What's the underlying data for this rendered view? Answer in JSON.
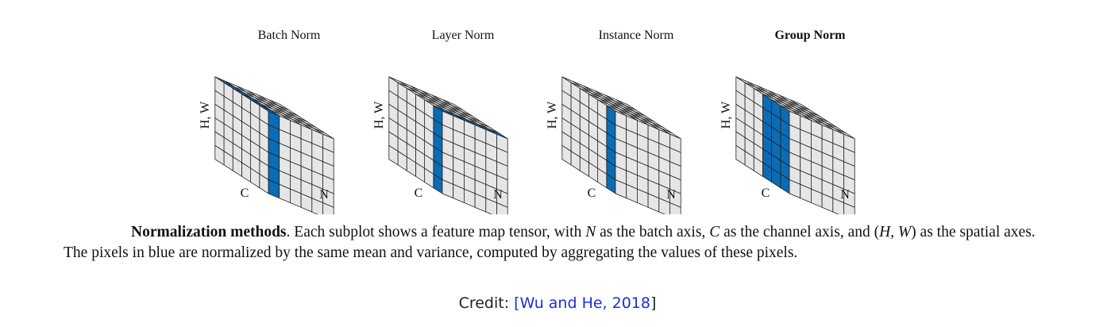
{
  "panels": [
    {
      "title": "Batch Norm",
      "bold": false,
      "mode": "batch"
    },
    {
      "title": "Layer Norm",
      "bold": false,
      "mode": "layer"
    },
    {
      "title": "Instance Norm",
      "bold": false,
      "mode": "instance"
    },
    {
      "title": "Group Norm",
      "bold": true,
      "mode": "group"
    }
  ],
  "axis_labels": {
    "hw": "H, W",
    "c": "C",
    "n": "N"
  },
  "colors": {
    "highlight": "#0a6cb5",
    "cell": "#e6e6e6",
    "stroke": "#222222"
  },
  "caption": {
    "lead": "Normalization methods",
    "part1": ". Each subplot shows a feature map tensor, with ",
    "n": "N",
    "part2": " as the batch axis, ",
    "c": "C",
    "part3": " as the channel axis, and (",
    "hw": "H, W",
    "part4": ") as the spatial axes. The pixels in blue are normalized by the same mean and variance, computed by aggregating the values of these pixels."
  },
  "credit": {
    "prefix": "Credit: ",
    "open": "[",
    "link": "Wu and He, 2018",
    "close": "]"
  }
}
